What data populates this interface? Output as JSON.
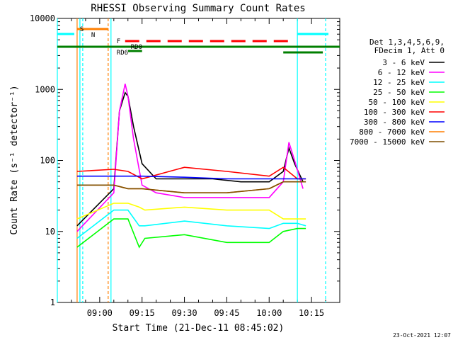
{
  "chart_data": {
    "type": "line",
    "title": "RHESSI Observing Summary Count Rates",
    "xlabel": "Start Time (21-Dec-11 08:45:02)",
    "ylabel": "Count Rate (s⁻¹ detector⁻¹)",
    "y_scale": "log",
    "ylim": [
      1,
      10000
    ],
    "xlim": [
      "08:45",
      "10:25"
    ],
    "x_ticks": [
      "09:00",
      "09:15",
      "09:30",
      "09:45",
      "10:00",
      "10:15"
    ],
    "y_ticks": [
      "1",
      "10",
      "100",
      "1000",
      "10000"
    ],
    "legend_header": [
      "Det 1,3,4,5,6,9,",
      "FDecim 1, Att 0"
    ],
    "legend_placement": "right",
    "series": [
      {
        "name": "3 - 6 keV",
        "color": "#000000",
        "x": [
          "08:52",
          "09:05",
          "09:07",
          "09:09",
          "09:10",
          "09:12",
          "09:15",
          "09:20",
          "09:30",
          "09:40",
          "09:50",
          "10:00",
          "10:05",
          "10:07",
          "10:09",
          "10:12"
        ],
        "values": [
          12,
          40,
          500,
          900,
          800,
          300,
          90,
          55,
          55,
          55,
          50,
          50,
          70,
          150,
          90,
          50
        ]
      },
      {
        "name": "6 - 12 keV",
        "color": "#ff00ff",
        "x": [
          "08:52",
          "09:05",
          "09:07",
          "09:09",
          "09:10",
          "09:12",
          "09:15",
          "09:20",
          "09:30",
          "09:40",
          "09:50",
          "10:00",
          "10:05",
          "10:07",
          "10:09",
          "10:12"
        ],
        "values": [
          10,
          35,
          500,
          1200,
          800,
          200,
          45,
          35,
          30,
          30,
          30,
          30,
          50,
          180,
          100,
          40
        ]
      },
      {
        "name": "12 - 25 keV",
        "color": "#00ffff",
        "x": [
          "08:52",
          "09:05",
          "09:10",
          "09:14",
          "09:16",
          "09:30",
          "09:45",
          "10:00",
          "10:05",
          "10:10",
          "10:13"
        ],
        "values": [
          8,
          20,
          20,
          12,
          12,
          14,
          12,
          11,
          13,
          13,
          12
        ]
      },
      {
        "name": "25 - 50 keV",
        "color": "#00ff00",
        "x": [
          "08:52",
          "09:05",
          "09:10",
          "09:14",
          "09:16",
          "09:30",
          "09:45",
          "10:00",
          "10:05",
          "10:10",
          "10:13"
        ],
        "values": [
          6,
          15,
          15,
          6,
          8,
          9,
          7,
          7,
          10,
          11,
          11
        ]
      },
      {
        "name": "50 - 100 keV",
        "color": "#ffff00",
        "x": [
          "08:52",
          "09:05",
          "09:10",
          "09:14",
          "09:16",
          "09:30",
          "09:45",
          "10:00",
          "10:05",
          "10:10",
          "10:13"
        ],
        "values": [
          15,
          25,
          25,
          22,
          20,
          22,
          20,
          20,
          15,
          15,
          15
        ]
      },
      {
        "name": "100 - 300 keV",
        "color": "#ff0000",
        "x": [
          "08:52",
          "09:05",
          "09:10",
          "09:15",
          "09:30",
          "09:45",
          "10:00",
          "10:05",
          "10:10",
          "10:13"
        ],
        "values": [
          70,
          75,
          70,
          55,
          80,
          70,
          60,
          80,
          55,
          55
        ]
      },
      {
        "name": "300 - 800 keV",
        "color": "#0000ff",
        "x": [
          "08:52",
          "09:05",
          "09:10",
          "09:15",
          "09:30",
          "09:45",
          "10:00",
          "10:05",
          "10:10",
          "10:13"
        ],
        "values": [
          60,
          60,
          60,
          60,
          58,
          55,
          55,
          55,
          55,
          55
        ]
      },
      {
        "name": "800 - 7000 keV",
        "color": "#ff7f00",
        "x": [
          "08:52",
          "09:05",
          "09:10",
          "09:15",
          "09:30",
          "09:45",
          "10:00",
          "10:05",
          "10:10",
          "10:13"
        ],
        "values": [
          45,
          45,
          40,
          40,
          35,
          35,
          40,
          50,
          50,
          50
        ]
      },
      {
        "name": "7000 - 15000 keV",
        "color": "#7f4f00",
        "x": [
          "08:52",
          "09:05",
          "09:10",
          "09:15",
          "09:30",
          "09:45",
          "10:00",
          "10:05",
          "10:10",
          "10:13"
        ],
        "values": [
          45,
          45,
          40,
          40,
          35,
          35,
          40,
          50,
          50,
          50
        ]
      }
    ],
    "flag_labels": {
      "s": "S",
      "n": "N",
      "f": "F",
      "rd0": "RD0",
      "rd6": "RD6"
    },
    "footer_date": "23-Oct-2021 12:07"
  }
}
